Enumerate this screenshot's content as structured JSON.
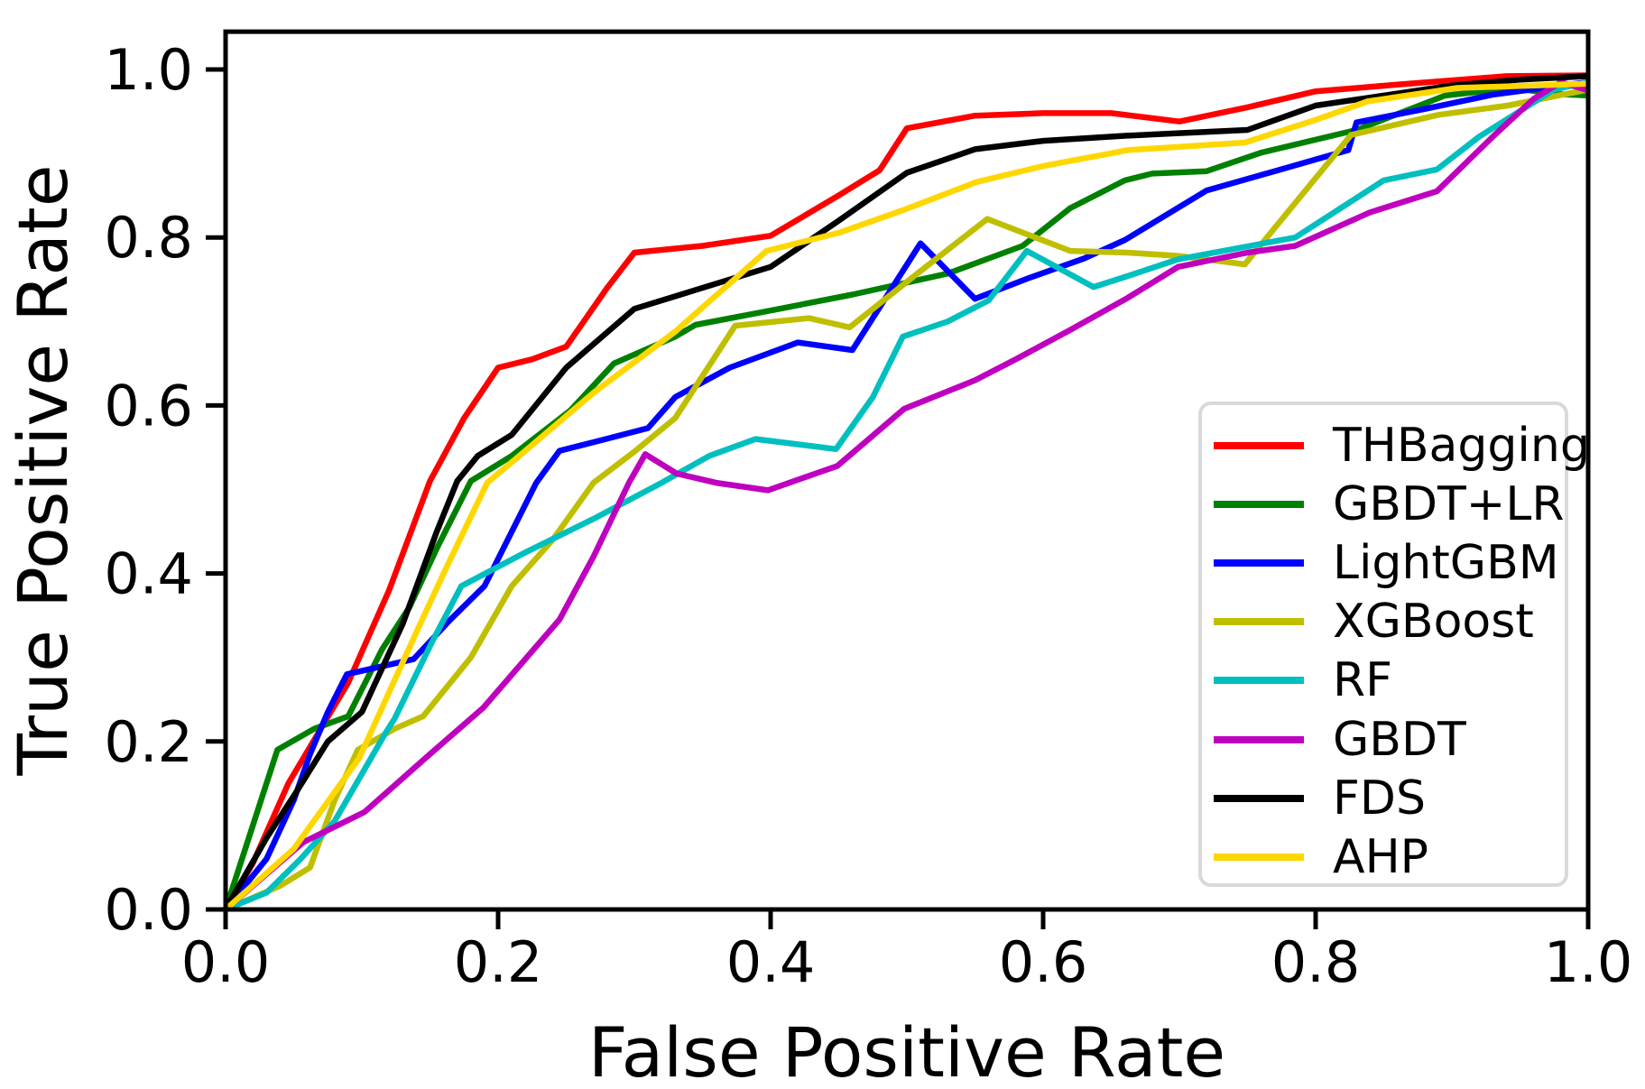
{
  "axes": {
    "xlabel": "False Positive Rate",
    "ylabel": "True Positive Rate",
    "x_ticks": [
      "0.0",
      "0.2",
      "0.4",
      "0.6",
      "0.8",
      "1.0"
    ],
    "y_ticks": [
      "0.0",
      "0.2",
      "0.4",
      "0.6",
      "0.8",
      "1.0"
    ]
  },
  "chart_data": {
    "type": "line",
    "title": "",
    "xlabel": "False Positive Rate",
    "ylabel": "True Positive Rate",
    "xlim": [
      0.0,
      1.0
    ],
    "ylim": [
      0.0,
      1.045
    ],
    "grid": false,
    "legend_position": "lower right",
    "x_tick_values": [
      0.0,
      0.2,
      0.4,
      0.6,
      0.8,
      1.0
    ],
    "y_tick_values": [
      0.0,
      0.2,
      0.4,
      0.6,
      0.8,
      1.0
    ],
    "axis_color": "#000000",
    "series": [
      {
        "name": "THBagging",
        "color": "#ff0000",
        "points": [
          [
            0,
            0
          ],
          [
            0.02,
            0.055
          ],
          [
            0.046,
            0.15
          ],
          [
            0.09,
            0.27
          ],
          [
            0.12,
            0.38
          ],
          [
            0.15,
            0.51
          ],
          [
            0.175,
            0.585
          ],
          [
            0.2,
            0.645
          ],
          [
            0.225,
            0.655
          ],
          [
            0.25,
            0.67
          ],
          [
            0.28,
            0.74
          ],
          [
            0.3,
            0.782
          ],
          [
            0.35,
            0.79
          ],
          [
            0.4,
            0.802
          ],
          [
            0.45,
            0.85
          ],
          [
            0.48,
            0.88
          ],
          [
            0.5,
            0.93
          ],
          [
            0.55,
            0.945
          ],
          [
            0.6,
            0.948
          ],
          [
            0.65,
            0.948
          ],
          [
            0.7,
            0.938
          ],
          [
            0.75,
            0.955
          ],
          [
            0.8,
            0.974
          ],
          [
            0.86,
            0.982
          ],
          [
            0.94,
            0.992
          ],
          [
            1.0,
            0.993
          ]
        ]
      },
      {
        "name": "GBDT+LR",
        "color": "#008000",
        "points": [
          [
            0,
            0
          ],
          [
            0.038,
            0.19
          ],
          [
            0.065,
            0.215
          ],
          [
            0.09,
            0.23
          ],
          [
            0.115,
            0.31
          ],
          [
            0.135,
            0.36
          ],
          [
            0.155,
            0.43
          ],
          [
            0.18,
            0.51
          ],
          [
            0.21,
            0.54
          ],
          [
            0.253,
            0.594
          ],
          [
            0.285,
            0.65
          ],
          [
            0.33,
            0.682
          ],
          [
            0.345,
            0.696
          ],
          [
            0.4,
            0.713
          ],
          [
            0.46,
            0.732
          ],
          [
            0.53,
            0.757
          ],
          [
            0.585,
            0.79
          ],
          [
            0.62,
            0.835
          ],
          [
            0.66,
            0.868
          ],
          [
            0.68,
            0.876
          ],
          [
            0.72,
            0.879
          ],
          [
            0.76,
            0.901
          ],
          [
            0.83,
            0.928
          ],
          [
            0.895,
            0.969
          ],
          [
            0.945,
            0.978
          ],
          [
            0.975,
            0.971
          ],
          [
            1.0,
            0.969
          ]
        ]
      },
      {
        "name": "LightGBM",
        "color": "#0000ff",
        "points": [
          [
            0,
            0
          ],
          [
            0.03,
            0.06
          ],
          [
            0.05,
            0.13
          ],
          [
            0.062,
            0.185
          ],
          [
            0.075,
            0.235
          ],
          [
            0.089,
            0.28
          ],
          [
            0.138,
            0.298
          ],
          [
            0.165,
            0.345
          ],
          [
            0.19,
            0.385
          ],
          [
            0.228,
            0.508
          ],
          [
            0.245,
            0.546
          ],
          [
            0.272,
            0.557
          ],
          [
            0.31,
            0.573
          ],
          [
            0.33,
            0.61
          ],
          [
            0.37,
            0.645
          ],
          [
            0.42,
            0.675
          ],
          [
            0.46,
            0.666
          ],
          [
            0.51,
            0.793
          ],
          [
            0.55,
            0.727
          ],
          [
            0.59,
            0.752
          ],
          [
            0.63,
            0.775
          ],
          [
            0.66,
            0.797
          ],
          [
            0.72,
            0.856
          ],
          [
            0.77,
            0.879
          ],
          [
            0.824,
            0.904
          ],
          [
            0.83,
            0.937
          ],
          [
            0.88,
            0.953
          ],
          [
            0.93,
            0.97
          ],
          [
            1.0,
            0.985
          ]
        ]
      },
      {
        "name": "XGBoost",
        "color": "#bfbf00",
        "points": [
          [
            0,
            0
          ],
          [
            0.04,
            0.028
          ],
          [
            0.062,
            0.05
          ],
          [
            0.08,
            0.13
          ],
          [
            0.097,
            0.19
          ],
          [
            0.124,
            0.215
          ],
          [
            0.145,
            0.23
          ],
          [
            0.18,
            0.3
          ],
          [
            0.21,
            0.385
          ],
          [
            0.24,
            0.44
          ],
          [
            0.27,
            0.508
          ],
          [
            0.3,
            0.545
          ],
          [
            0.33,
            0.585
          ],
          [
            0.374,
            0.695
          ],
          [
            0.428,
            0.704
          ],
          [
            0.458,
            0.693
          ],
          [
            0.51,
            0.76
          ],
          [
            0.559,
            0.822
          ],
          [
            0.62,
            0.784
          ],
          [
            0.662,
            0.782
          ],
          [
            0.7,
            0.778
          ],
          [
            0.748,
            0.768
          ],
          [
            0.826,
            0.922
          ],
          [
            0.89,
            0.946
          ],
          [
            0.941,
            0.957
          ],
          [
            1.0,
            0.976
          ]
        ]
      },
      {
        "name": "RF",
        "color": "#00bfbf",
        "points": [
          [
            0,
            0
          ],
          [
            0.03,
            0.02
          ],
          [
            0.055,
            0.06
          ],
          [
            0.08,
            0.105
          ],
          [
            0.117,
            0.209
          ],
          [
            0.124,
            0.227
          ],
          [
            0.152,
            0.32
          ],
          [
            0.173,
            0.385
          ],
          [
            0.22,
            0.425
          ],
          [
            0.27,
            0.465
          ],
          [
            0.32,
            0.508
          ],
          [
            0.355,
            0.54
          ],
          [
            0.389,
            0.56
          ],
          [
            0.448,
            0.548
          ],
          [
            0.475,
            0.61
          ],
          [
            0.497,
            0.682
          ],
          [
            0.53,
            0.7
          ],
          [
            0.56,
            0.725
          ],
          [
            0.588,
            0.784
          ],
          [
            0.637,
            0.741
          ],
          [
            0.662,
            0.754
          ],
          [
            0.699,
            0.774
          ],
          [
            0.785,
            0.8
          ],
          [
            0.85,
            0.868
          ],
          [
            0.889,
            0.881
          ],
          [
            0.92,
            0.92
          ],
          [
            0.975,
            0.976
          ],
          [
            1.0,
            0.985
          ]
        ]
      },
      {
        "name": "GBDT",
        "color": "#bf00bf",
        "points": [
          [
            0,
            0
          ],
          [
            0.057,
            0.08
          ],
          [
            0.102,
            0.116
          ],
          [
            0.15,
            0.185
          ],
          [
            0.189,
            0.24
          ],
          [
            0.245,
            0.345
          ],
          [
            0.27,
            0.42
          ],
          [
            0.296,
            0.508
          ],
          [
            0.308,
            0.542
          ],
          [
            0.331,
            0.519
          ],
          [
            0.36,
            0.508
          ],
          [
            0.398,
            0.499
          ],
          [
            0.449,
            0.528
          ],
          [
            0.498,
            0.596
          ],
          [
            0.55,
            0.63
          ],
          [
            0.58,
            0.655
          ],
          [
            0.62,
            0.69
          ],
          [
            0.662,
            0.728
          ],
          [
            0.699,
            0.765
          ],
          [
            0.75,
            0.782
          ],
          [
            0.785,
            0.79
          ],
          [
            0.84,
            0.83
          ],
          [
            0.889,
            0.855
          ],
          [
            0.93,
            0.92
          ],
          [
            0.96,
            0.965
          ],
          [
            0.98,
            0.985
          ],
          [
            1.0,
            0.975
          ]
        ]
      },
      {
        "name": "FDS",
        "color": "#000000",
        "points": [
          [
            0,
            0
          ],
          [
            0.03,
            0.085
          ],
          [
            0.05,
            0.135
          ],
          [
            0.075,
            0.2
          ],
          [
            0.1,
            0.235
          ],
          [
            0.13,
            0.34
          ],
          [
            0.155,
            0.45
          ],
          [
            0.17,
            0.51
          ],
          [
            0.185,
            0.54
          ],
          [
            0.21,
            0.565
          ],
          [
            0.25,
            0.645
          ],
          [
            0.3,
            0.715
          ],
          [
            0.34,
            0.735
          ],
          [
            0.4,
            0.765
          ],
          [
            0.45,
            0.82
          ],
          [
            0.5,
            0.877
          ],
          [
            0.55,
            0.905
          ],
          [
            0.6,
            0.915
          ],
          [
            0.66,
            0.921
          ],
          [
            0.75,
            0.928
          ],
          [
            0.8,
            0.957
          ],
          [
            0.9,
            0.981
          ],
          [
            0.95,
            0.988
          ],
          [
            1.0,
            0.992
          ]
        ]
      },
      {
        "name": "AHP",
        "color": "#ffd700",
        "points": [
          [
            0,
            0
          ],
          [
            0.05,
            0.072
          ],
          [
            0.098,
            0.18
          ],
          [
            0.14,
            0.33
          ],
          [
            0.16,
            0.4
          ],
          [
            0.192,
            0.508
          ],
          [
            0.223,
            0.55
          ],
          [
            0.27,
            0.615
          ],
          [
            0.33,
            0.688
          ],
          [
            0.397,
            0.784
          ],
          [
            0.451,
            0.806
          ],
          [
            0.498,
            0.833
          ],
          [
            0.551,
            0.866
          ],
          [
            0.6,
            0.885
          ],
          [
            0.662,
            0.904
          ],
          [
            0.7,
            0.908
          ],
          [
            0.748,
            0.913
          ],
          [
            0.8,
            0.94
          ],
          [
            0.838,
            0.962
          ],
          [
            0.904,
            0.978
          ],
          [
            1.0,
            0.983
          ]
        ]
      }
    ]
  },
  "legend": {
    "border_color": "#d9d9d9",
    "background": "#ffffff"
  }
}
